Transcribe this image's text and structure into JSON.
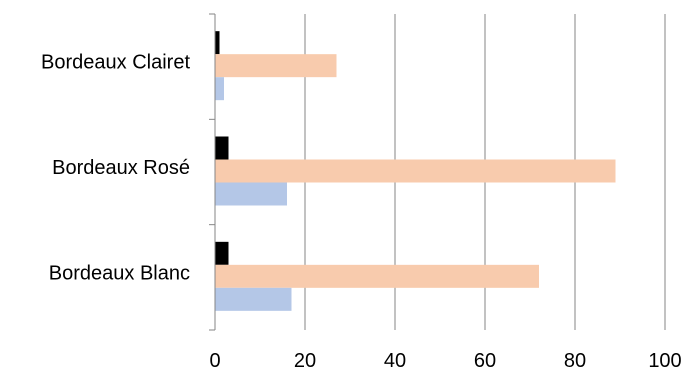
{
  "chart_data": {
    "type": "bar",
    "orientation": "horizontal",
    "categories": [
      "Bordeaux Clairet",
      "Bordeaux Rosé",
      "Bordeaux Blanc"
    ],
    "series": [
      {
        "values": [
          1,
          3,
          3
        ],
        "color": "#000000"
      },
      {
        "values": [
          27,
          89,
          72
        ],
        "color": "#F8CBAD"
      },
      {
        "values": [
          2,
          16,
          17
        ],
        "color": "#B4C7E7"
      }
    ],
    "xlim": [
      0,
      100
    ],
    "xticks": [
      "0",
      "20",
      "40",
      "60",
      "80",
      "100"
    ],
    "grid": "vertical",
    "legend": "none",
    "title": "",
    "xlabel": "",
    "ylabel": ""
  }
}
